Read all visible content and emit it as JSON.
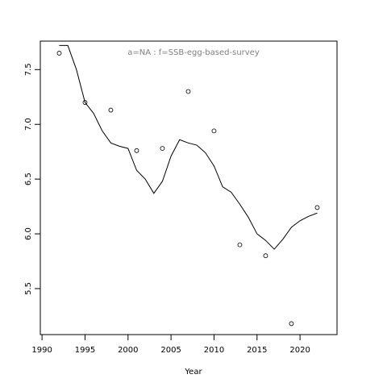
{
  "chart_data": {
    "type": "scatter-line",
    "title": "a=NA  :  f=SSB-egg-based-survey",
    "xlabel": "Year",
    "color": "#000000",
    "title_color": "#808080",
    "xlim": [
      1989.8,
      2024.3
    ],
    "ylim": [
      5.08,
      7.76
    ],
    "xticks": [
      1990,
      1995,
      2000,
      2005,
      2010,
      2015,
      2020
    ],
    "yticks": [
      5.5,
      {
        "value": 6,
        "label": "6.0"
      },
      6.5,
      {
        "value": 7,
        "label": "7.0"
      },
      7.5
    ],
    "series": [
      {
        "type": "scatter",
        "x": [
          1992,
          1995,
          1998,
          2001,
          2004,
          2007,
          2010,
          2013,
          2016,
          2019,
          2022
        ],
        "values": [
          7.65,
          7.2,
          7.13,
          6.76,
          6.78,
          7.3,
          6.94,
          5.9,
          5.8,
          5.18,
          6.24
        ]
      },
      {
        "type": "line",
        "x": [
          1992,
          1993,
          1994,
          1995,
          1996,
          1997,
          1998,
          1999,
          2000,
          2001,
          2002,
          2003,
          2004,
          2005,
          2006,
          2007,
          2008,
          2009,
          2010,
          2011,
          2012,
          2013,
          2014,
          2015,
          2016,
          2017,
          2018,
          2019,
          2020,
          2021,
          2022
        ],
        "values": [
          7.72,
          7.72,
          7.5,
          7.2,
          7.1,
          6.94,
          6.83,
          6.8,
          6.78,
          6.58,
          6.5,
          6.37,
          6.48,
          6.71,
          6.86,
          6.83,
          6.81,
          6.74,
          6.62,
          6.43,
          6.38,
          6.27,
          6.15,
          6.0,
          5.94,
          5.86,
          5.95,
          6.06,
          6.12,
          6.16,
          6.19
        ]
      }
    ]
  }
}
